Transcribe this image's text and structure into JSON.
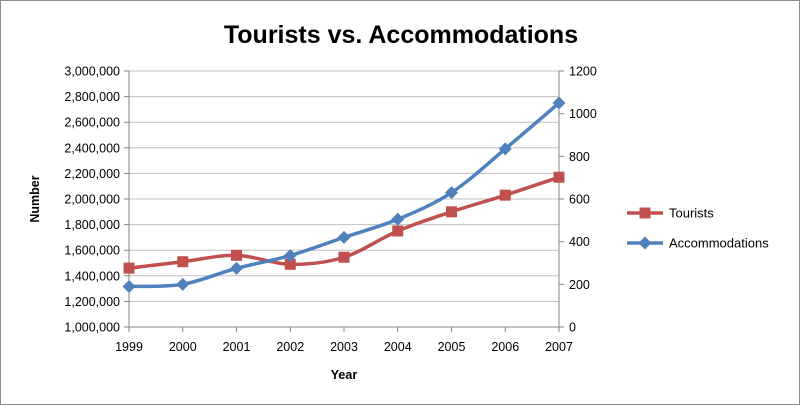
{
  "chart_data": {
    "type": "line",
    "title": "Tourists vs. Accommodations",
    "xlabel": "Year",
    "ylabel": "Number",
    "x": [
      1999,
      2000,
      2001,
      2002,
      2003,
      2004,
      2005,
      2006,
      2007
    ],
    "x_tick_labels": [
      "1999",
      "2000",
      "2001",
      "2002",
      "2003",
      "2004",
      "2005",
      "2006",
      "2007"
    ],
    "y_left": {
      "range": [
        1000000,
        3000000
      ],
      "step": 200000,
      "tick_labels": [
        "1,000,000",
        "1,200,000",
        "1,400,000",
        "1,600,000",
        "1,800,000",
        "2,000,000",
        "2,200,000",
        "2,400,000",
        "2,600,000",
        "2,800,000",
        "3,000,000"
      ]
    },
    "y_right": {
      "range": [
        0,
        1200
      ],
      "step": 200,
      "tick_labels": [
        "0",
        "200",
        "400",
        "600",
        "800",
        "1000",
        "1200"
      ]
    },
    "grid": true,
    "legend_position": "right",
    "series": [
      {
        "name": "Tourists",
        "axis": "left",
        "color": "#C0504D",
        "marker": "square",
        "values": [
          1460000,
          1510000,
          1560000,
          1490000,
          1545000,
          1750000,
          1900000,
          2030000,
          2170000
        ]
      },
      {
        "name": "Accommodations",
        "axis": "right",
        "color": "#4F81BD",
        "marker": "diamond",
        "values": [
          190,
          200,
          275,
          335,
          420,
          505,
          630,
          835,
          1050
        ]
      }
    ]
  }
}
